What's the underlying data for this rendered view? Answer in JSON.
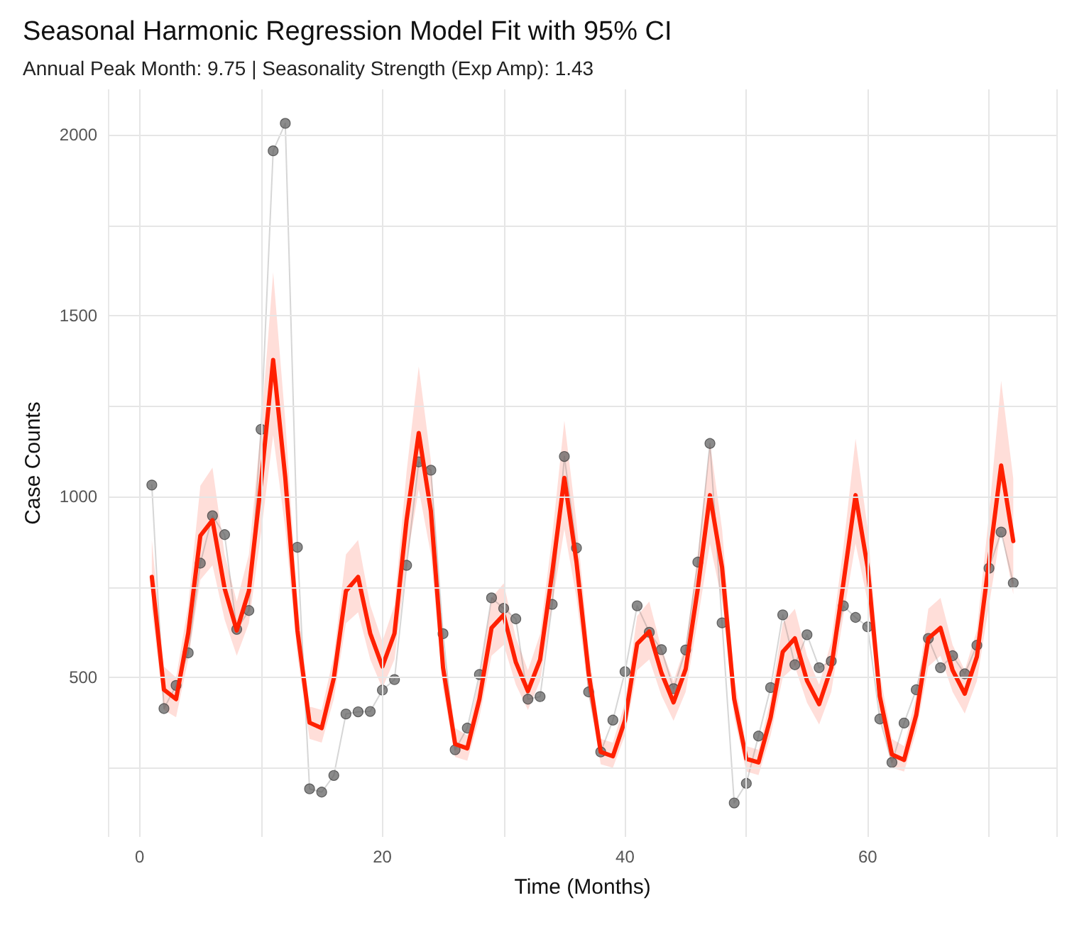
{
  "chart_data": {
    "type": "line",
    "title": "Seasonal Harmonic Regression Model Fit with 95% CI",
    "subtitle": "Annual Peak Month: 9.75 | Seasonality Strength (Exp Amp): 1.43",
    "xlabel": "Time (Months)",
    "ylabel": "Case Counts",
    "x": [
      1,
      2,
      3,
      4,
      5,
      6,
      7,
      8,
      9,
      10,
      11,
      12,
      13,
      14,
      15,
      16,
      17,
      18,
      19,
      20,
      21,
      22,
      23,
      24,
      25,
      26,
      27,
      28,
      29,
      30,
      31,
      32,
      33,
      34,
      35,
      36,
      37,
      38,
      39,
      40,
      41,
      42,
      43,
      44,
      45,
      46,
      47,
      48,
      49,
      50,
      51,
      52,
      53,
      54,
      55,
      56,
      57,
      58,
      59,
      60,
      61,
      62,
      63,
      64,
      65,
      66,
      67,
      68,
      69,
      70,
      71,
      72
    ],
    "series": [
      {
        "color": "#5a5a5a",
        "marker": "circle",
        "values": [
          1032,
          414,
          478,
          568,
          816,
          947,
          895,
          633,
          685,
          1186,
          1956,
          2032,
          860,
          192,
          183,
          229,
          399,
          405,
          406,
          465,
          494,
          810,
          1096,
          1073,
          621,
          300,
          360,
          508,
          720,
          691,
          662,
          440,
          447,
          702,
          1111,
          858,
          460,
          294,
          382,
          516,
          698,
          625,
          577,
          469,
          576,
          819,
          1147,
          651,
          153,
          207,
          338,
          472,
          673,
          535,
          618,
          527,
          545,
          698,
          666,
          640,
          385,
          265,
          374,
          466,
          608,
          527,
          560,
          510,
          589,
          802,
          902,
          761
        ]
      },
      {
        "color": "#ff2000",
        "marker": "none",
        "values": [
          778,
          466,
          440,
          622,
          892,
          935,
          746,
          630,
          739,
          1038,
          1378,
          1052,
          630,
          375,
          360,
          498,
          739,
          778,
          622,
          530,
          622,
          936,
          1176,
          960,
          527,
          316,
          304,
          440,
          637,
          673,
          542,
          462,
          549,
          790,
          1052,
          819,
          513,
          294,
          282,
          382,
          593,
          627,
          513,
          431,
          523,
          746,
          1004,
          804,
          440,
          275,
          265,
          389,
          571,
          608,
          491,
          426,
          527,
          761,
          1004,
          804,
          447,
          287,
          272,
          396,
          608,
          637,
          520,
          455,
          557,
          819,
          1086,
          877
        ],
        "lower": [
          690,
          410,
          390,
          550,
          770,
          810,
          660,
          560,
          650,
          900,
          1170,
          910,
          560,
          330,
          320,
          440,
          650,
          680,
          550,
          470,
          550,
          820,
          1020,
          840,
          470,
          280,
          270,
          390,
          560,
          590,
          480,
          410,
          490,
          700,
          910,
          720,
          450,
          260,
          250,
          340,
          520,
          550,
          450,
          380,
          460,
          660,
          870,
          710,
          390,
          240,
          230,
          340,
          500,
          530,
          430,
          370,
          460,
          670,
          870,
          710,
          400,
          250,
          240,
          350,
          530,
          560,
          460,
          400,
          490,
          700,
          910,
          730
        ],
        "upper": [
          880,
          530,
          500,
          700,
          1030,
          1080,
          840,
          710,
          840,
          1190,
          1620,
          1210,
          710,
          420,
          410,
          560,
          840,
          880,
          700,
          600,
          700,
          1070,
          1360,
          1100,
          590,
          360,
          340,
          500,
          720,
          760,
          610,
          520,
          620,
          890,
          1210,
          930,
          580,
          330,
          320,
          430,
          670,
          710,
          580,
          490,
          590,
          840,
          1150,
          910,
          500,
          310,
          300,
          440,
          650,
          690,
          560,
          480,
          600,
          860,
          1160,
          910,
          510,
          330,
          310,
          450,
          690,
          720,
          590,
          520,
          630,
          950,
          1320,
          1050
        ]
      }
    ],
    "xlim": [
      -2.55,
      75.55
    ],
    "xticks": [
      0,
      {
        "value": 10,
        "label": null
      },
      20,
      {
        "value": 30,
        "label": null
      },
      40,
      {
        "value": 50,
        "label": null
      },
      60,
      {
        "value": 70,
        "label": null
      }
    ],
    "ylim": [
      59,
      2126
    ],
    "yticks": [
      {
        "value": 250,
        "label": null
      },
      500,
      {
        "value": 750,
        "label": null
      },
      1000,
      {
        "value": 1250,
        "label": null
      },
      1500,
      {
        "value": 1750,
        "label": null
      },
      2000
    ],
    "grid": true
  }
}
